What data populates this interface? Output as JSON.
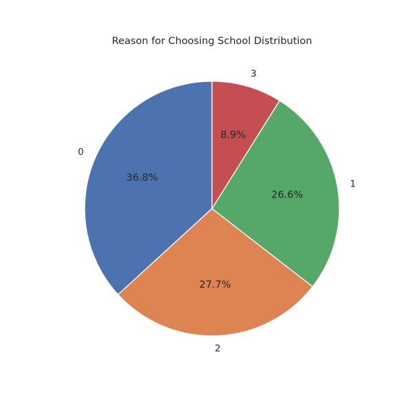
{
  "chart_data": {
    "type": "pie",
    "title": "Reason for Choosing School Distribution",
    "start_angle_deg": 90,
    "direction": "counterclockwise",
    "slices": [
      {
        "label": "0",
        "value": 36.8,
        "pct_label": "36.8%",
        "color": "#4c72b0"
      },
      {
        "label": "2",
        "value": 27.7,
        "pct_label": "27.7%",
        "color": "#dd8452"
      },
      {
        "label": "1",
        "value": 26.6,
        "pct_label": "26.6%",
        "color": "#55a868"
      },
      {
        "label": "3",
        "value": 8.9,
        "pct_label": "8.9%",
        "color": "#c44e52"
      }
    ]
  }
}
